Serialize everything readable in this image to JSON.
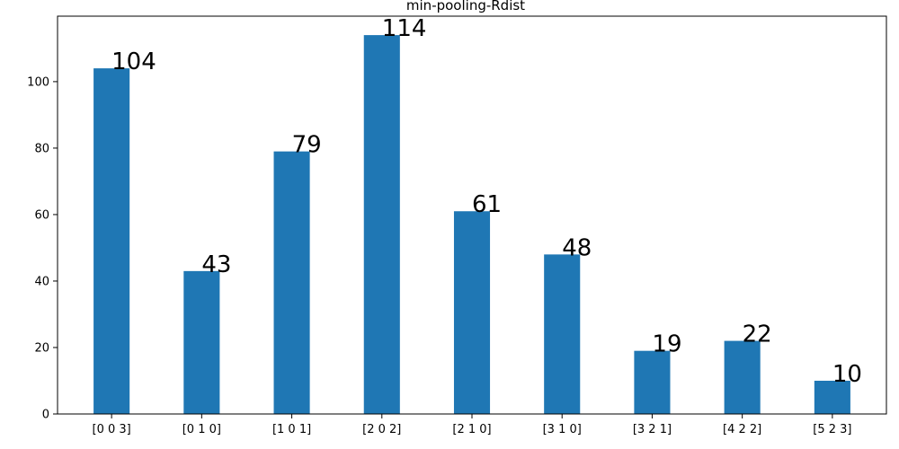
{
  "chart_data": {
    "type": "bar",
    "title": "min-pooling-Rdist",
    "xlabel": "",
    "ylabel": "",
    "categories": [
      "[0 0 3]",
      "[0 1 0]",
      "[1 0 1]",
      "[2 0 2]",
      "[2 1 0]",
      "[3 1 0]",
      "[3 2 1]",
      "[4 2 2]",
      "[5 2 3]"
    ],
    "values": [
      104,
      43,
      79,
      114,
      61,
      48,
      19,
      22,
      10
    ],
    "data_labels": [
      "104",
      "43",
      "79",
      "114",
      "61",
      "48",
      "19",
      "22",
      "10"
    ],
    "ylim": [
      0,
      119.7
    ],
    "yticks": [
      0,
      20,
      40,
      60,
      80,
      100
    ],
    "ytick_labels": [
      "0",
      "20",
      "40",
      "60",
      "80",
      "100"
    ],
    "grid": false,
    "bar_color": "#1f77b4"
  }
}
